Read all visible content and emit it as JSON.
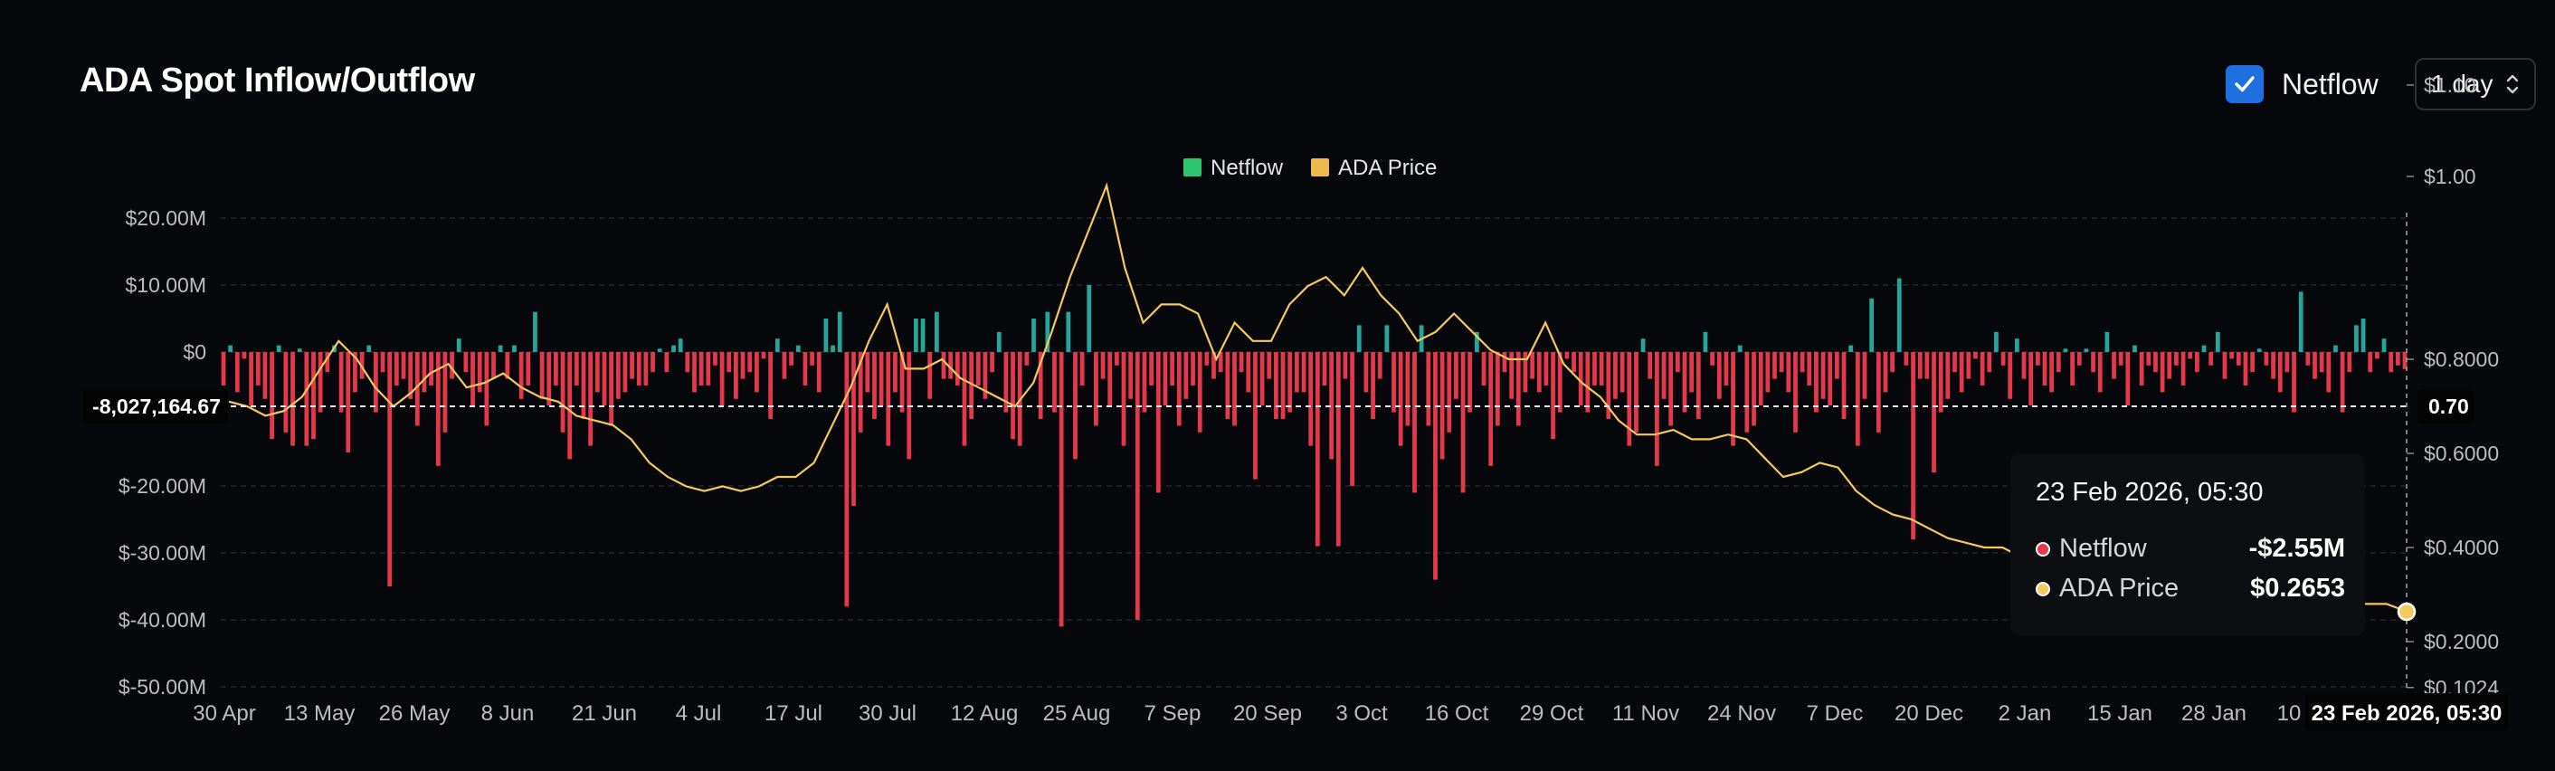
{
  "header": {
    "title": "ADA Spot Inflow/Outflow",
    "netflow_toggle_label": "Netflow",
    "netflow_checked": true,
    "interval_value": "1 day"
  },
  "colors": {
    "positive": "#26a69a",
    "negative": "#e5384d",
    "price": "#f4c95d",
    "legend_netflow": "#2fc46e",
    "legend_price": "#f0b94a"
  },
  "tooltip": {
    "date": "23 Feb 2026, 05:30",
    "rows": [
      {
        "name": "Netflow",
        "value": "-$2.55M",
        "color": "#e5384d"
      },
      {
        "name": "ADA Price",
        "value": "$0.2653",
        "color": "#f4c95d"
      }
    ]
  },
  "crosshair": {
    "y_value": "-8,027,164.67",
    "price_value": "0.70",
    "x_label": "23 Feb 2026, 05:30"
  },
  "chart_data": {
    "type": "bar",
    "legend": [
      "Netflow",
      "ADA Price"
    ],
    "x_ticks": [
      "30 Apr",
      "13 May",
      "26 May",
      "8 Jun",
      "21 Jun",
      "4 Jul",
      "17 Jul",
      "30 Jul",
      "12 Aug",
      "25 Aug",
      "7 Sep",
      "20 Sep",
      "3 Oct",
      "16 Oct",
      "29 Oct",
      "11 Nov",
      "24 Nov",
      "7 Dec",
      "20 Dec",
      "2 Jan",
      "15 Jan",
      "28 Jan",
      "10"
    ],
    "y_left_ticks": [
      "$20.00M",
      "$10.00M",
      "$0",
      "$-20.00M",
      "$-30.00M",
      "$-40.00M",
      "$-50.00M"
    ],
    "y_right_ticks": [
      "$1.10",
      "$1.00",
      "$0.8000",
      "$0.6000",
      "$0.4000",
      "$0.2000",
      "$0.1024"
    ],
    "ylim_netflow_musd": [
      -50,
      20
    ],
    "ylim_price_usd": [
      0.1024,
      1.1
    ],
    "netflow_musd": [
      -5,
      1,
      -6,
      -1,
      -8,
      -5,
      -7,
      -13,
      1,
      -12,
      -14,
      0.5,
      -14,
      -13,
      -9,
      -3,
      1,
      -9,
      -15,
      -6,
      -4,
      1,
      -9,
      -3,
      -35,
      -5,
      -4,
      -7,
      -11,
      -6,
      -5,
      -17,
      -12,
      -4,
      2,
      -3,
      -8,
      -6,
      -11,
      -4,
      1,
      -4,
      1,
      -7,
      -5,
      6,
      -7,
      -8,
      -5,
      -12,
      -16,
      -5,
      -10,
      -14,
      -6,
      -8,
      -11,
      -7,
      -6,
      -4,
      -5,
      -5,
      -3,
      0.5,
      -3,
      1,
      2,
      -3,
      -6,
      -5,
      -5,
      -2,
      -8,
      -3,
      -7,
      -4,
      -3,
      -6,
      -1,
      -10,
      2,
      -4,
      -2,
      1,
      -5,
      -2,
      -6,
      5,
      1,
      6,
      -38,
      -23,
      -12,
      -6,
      -10,
      -8,
      -14,
      -6,
      -9,
      -16,
      5,
      5,
      -7,
      6,
      -4,
      -4,
      -5,
      -14,
      -10,
      -5,
      -7,
      -3,
      3,
      -9,
      -13,
      -14,
      -2,
      5,
      -10,
      6,
      -9,
      -41,
      6,
      -16,
      -5,
      10,
      -11,
      -4,
      -8,
      -2,
      -14,
      -7,
      -40,
      -9,
      -5,
      -21,
      -8,
      -5,
      -11,
      -7,
      -5,
      -12,
      -2,
      -4,
      -3,
      -10,
      -11,
      -3,
      -6,
      -19,
      -8,
      -4,
      -10,
      -10,
      -9,
      -6,
      -6,
      -14,
      -29,
      -5,
      -16,
      -29,
      -4,
      -20,
      4,
      -6,
      -10,
      -4,
      4,
      -9,
      -14,
      -11,
      -21,
      4,
      -11,
      -34,
      -16,
      -12,
      -7,
      -21,
      -9,
      3,
      -5,
      -17,
      -11,
      -3,
      -7,
      -11,
      -6,
      -4,
      -6,
      -5,
      -13,
      -9,
      -1,
      -3,
      -8,
      -9,
      -5,
      -5,
      -10,
      -7,
      -6,
      -14,
      -12,
      2,
      -4,
      -17,
      -7,
      -11,
      -3,
      -9,
      -6,
      -10,
      3,
      -2,
      -7,
      -5,
      -14,
      1,
      -12,
      -11,
      -8,
      -6,
      -4,
      -3,
      -6,
      -12,
      -3,
      -5,
      -9,
      -7,
      -8,
      -4,
      -10,
      1,
      -14,
      -7,
      8,
      -12,
      -6,
      -3,
      11,
      -2,
      -28,
      -4,
      -4,
      -18,
      -9,
      -7,
      -3,
      -6,
      -4,
      -1,
      -5,
      -3,
      3,
      -2,
      -7,
      2,
      -4,
      -8,
      -2,
      -5,
      -6,
      -3,
      0.5,
      -5,
      -2,
      0.5,
      -3,
      -6,
      3,
      -4,
      -2,
      -8,
      1,
      -5,
      -2,
      -3,
      -6,
      -4,
      -2,
      -5,
      -1,
      -3,
      1,
      -2,
      3,
      -4,
      -1,
      -2,
      -5,
      -3,
      0.5,
      -2,
      -4,
      -6,
      -3,
      -9,
      9,
      -2,
      -4,
      -3,
      -6,
      1,
      -9,
      -3,
      4,
      5,
      -3,
      -1,
      2,
      -3,
      -2,
      -2.55
    ],
    "price_series": {
      "name": "ADA Price",
      "values": [
        0.71,
        0.7,
        0.68,
        0.69,
        0.72,
        0.78,
        0.82,
        0.8,
        0.74,
        0.7,
        0.73,
        0.77,
        0.79,
        0.74,
        0.75,
        0.77,
        0.74,
        0.72,
        0.71,
        0.68,
        0.67,
        0.66,
        0.63,
        0.58,
        0.55,
        0.53,
        0.52,
        0.53,
        0.52,
        0.53,
        0.55,
        0.55,
        0.58,
        0.66,
        0.74,
        0.82,
        0.86,
        0.78,
        0.78,
        0.8,
        0.76,
        0.74,
        0.72,
        0.7,
        0.75,
        0.83,
        0.89,
        0.94,
        0.99,
        0.9,
        0.84,
        0.86,
        0.86,
        0.85,
        0.8,
        0.84,
        0.82,
        0.82,
        0.86,
        0.88,
        0.89,
        0.87,
        0.9,
        0.87,
        0.85,
        0.82,
        0.83,
        0.85,
        0.83,
        0.81,
        0.8,
        0.8,
        0.84,
        0.79,
        0.75,
        0.72,
        0.67,
        0.64,
        0.64,
        0.65,
        0.63,
        0.63,
        0.64,
        0.63,
        0.59,
        0.55,
        0.56,
        0.58,
        0.57,
        0.52,
        0.49,
        0.47,
        0.46,
        0.44,
        0.42,
        0.41,
        0.4,
        0.4,
        0.38,
        0.39,
        0.4,
        0.39,
        0.37,
        0.36,
        0.36,
        0.35,
        0.34,
        0.34,
        0.33,
        0.32,
        0.31,
        0.3,
        0.3,
        0.29,
        0.29,
        0.28,
        0.28,
        0.28,
        0.28,
        0.2653
      ]
    }
  }
}
